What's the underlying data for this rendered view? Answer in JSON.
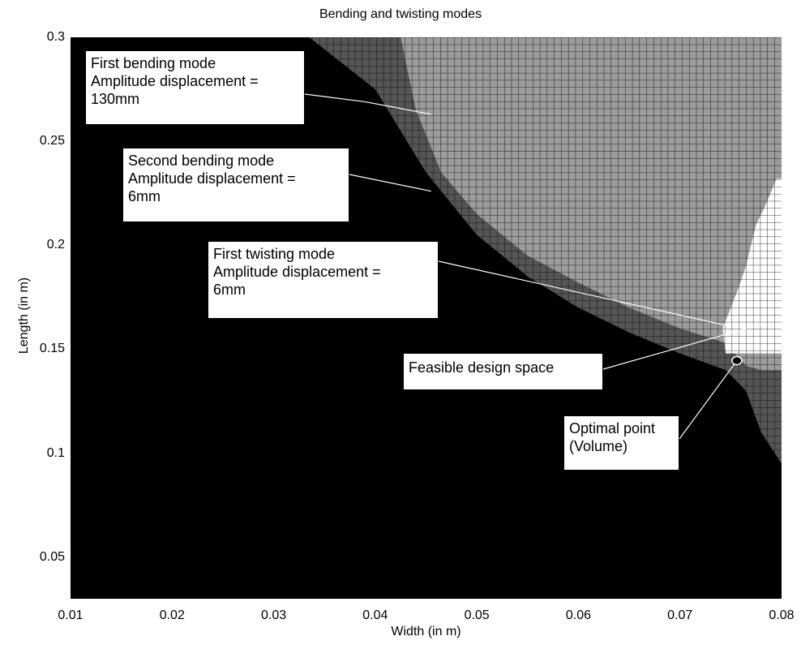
{
  "chart_data": {
    "type": "heatmap",
    "title": "Bending and twisting modes",
    "xlabel": "Width (in m)",
    "ylabel": "Length (in m)",
    "xlim": [
      0.01,
      0.08
    ],
    "ylim": [
      0.03,
      0.3
    ],
    "xticks": [
      "0.01",
      "0.02",
      "0.03",
      "0.04",
      "0.05",
      "0.06",
      "0.07",
      "0.08"
    ],
    "yticks": [
      "0.05",
      "0.1",
      "0.15",
      "0.2",
      "0.25",
      "0.3"
    ],
    "grid": false,
    "legend": "none",
    "colors": {
      "infeasible": "#000000",
      "second_bending": "#555555",
      "first_bending": "#9c9c9c",
      "feasible": "#ffffff",
      "cell_line": "#000000"
    },
    "regions": {
      "second_bending_boundary": {
        "x": [
          0.0335,
          0.04,
          0.045,
          0.05,
          0.055,
          0.06,
          0.065,
          0.07,
          0.0745,
          0.0765,
          0.078,
          0.08
        ],
        "y": [
          0.3,
          0.275,
          0.235,
          0.205,
          0.185,
          0.17,
          0.158,
          0.148,
          0.14,
          0.13,
          0.11,
          0.095
        ]
      },
      "first_bending_boundary": {
        "x": [
          0.0425,
          0.044,
          0.0465,
          0.05,
          0.055,
          0.06,
          0.065,
          0.07,
          0.0745,
          0.0765,
          0.078,
          0.08
        ],
        "y": [
          0.3,
          0.265,
          0.235,
          0.215,
          0.195,
          0.182,
          0.17,
          0.16,
          0.153,
          0.142,
          0.14,
          0.14
        ]
      },
      "feasible_left_boundary": {
        "y": [
          0.148,
          0.16,
          0.17,
          0.18,
          0.19,
          0.2,
          0.21,
          0.22,
          0.232
        ],
        "x": [
          0.0745,
          0.0742,
          0.075,
          0.0758,
          0.0765,
          0.077,
          0.0775,
          0.0785,
          0.0795
        ]
      }
    },
    "optimal_point": {
      "x": 0.0756,
      "y": 0.1445
    },
    "annotations": [
      {
        "lines": [
          "First bending mode",
          "Amplitude displacement  =",
          "130mm"
        ],
        "target": {
          "x": 0.0455,
          "y": 0.263
        },
        "elbow": {
          "x": 0.039,
          "y": 0.269
        }
      },
      {
        "lines": [
          "Second bending mode",
          "Amplitude displacement =",
          "6mm"
        ],
        "target": {
          "x": 0.0455,
          "y": 0.226
        }
      },
      {
        "lines": [
          "First twisting mode",
          "Amplitude displacement =",
          "6mm"
        ],
        "target": {
          "x": 0.075,
          "y": 0.161
        }
      },
      {
        "lines": [
          "Feasible design space"
        ],
        "target": {
          "x": 0.078,
          "y": 0.162
        }
      },
      {
        "lines": [
          "Optimal point",
          "(Volume)"
        ],
        "target": {
          "x": 0.0756,
          "y": 0.1445
        }
      }
    ]
  }
}
